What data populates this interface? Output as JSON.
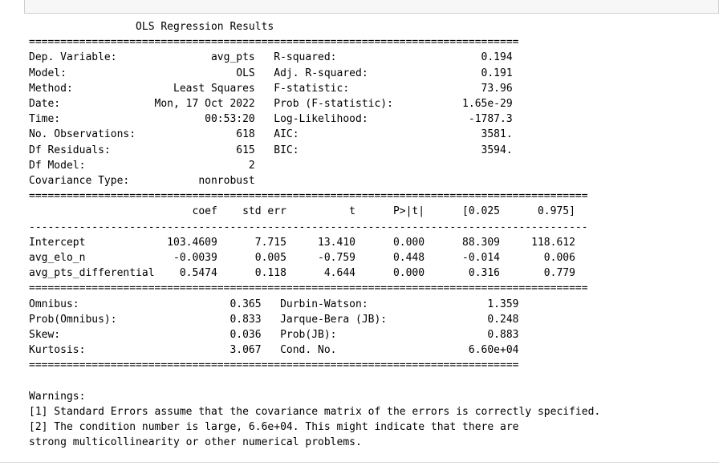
{
  "summary": {
    "title_line": "                 OLS Regression Results                           ",
    "rule_double_1": "==============================================================================",
    "top_table": [
      "Dep. Variable:               avg_pts   R-squared:                       0.194",
      "Model:                           OLS   Adj. R-squared:                  0.191",
      "Method:                Least Squares   F-statistic:                     73.96",
      "Date:               Mon, 17 Oct 2022   Prob (F-statistic):           1.65e-29",
      "Time:                       00:53:20   Log-Likelihood:                -1787.3",
      "No. Observations:                618   AIC:                             3581.",
      "Df Residuals:                    615   BIC:                             3594.",
      "Df Model:                          2                                         ",
      "Covariance Type:           nonrobust                                         "
    ],
    "rule_double_2": "=========================================================================================",
    "coef_header": "                          coef    std err          t      P>|t|      [0.025      0.975]",
    "rule_dash": "-----------------------------------------------------------------------------------------",
    "coef_rows": [
      "Intercept             103.4609      7.715     13.410      0.000      88.309     118.612",
      "avg_elo_n              -0.0039      0.005     -0.759      0.448      -0.014       0.006",
      "avg_pts_differential    0.5474      0.118      4.644      0.000       0.316       0.779"
    ],
    "rule_double_3": "==============================================================================",
    "diag_rows": [
      "Omnibus:                        0.365   Durbin-Watson:                   1.359",
      "Prob(Omnibus):                  0.833   Jarque-Bera (JB):                0.248",
      "Skew:                           0.036   Prob(JB):                        0.883",
      "Kurtosis:                       3.067   Cond. No.                     6.60e+04"
    ],
    "rule_double_4": "==============================================================================",
    "warnings_title": "Warnings:",
    "warnings": [
      "[1] Standard Errors assume that the covariance matrix of the errors is correctly specified.",
      "[2] The condition number is large, 6.6e+04. This might indicate that there are",
      "strong multicollinearity or other numerical problems."
    ]
  }
}
